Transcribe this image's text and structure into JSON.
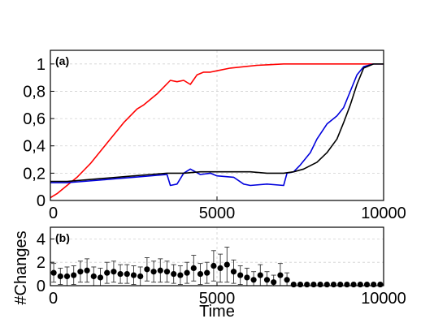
{
  "chart_data": [
    {
      "type": "line",
      "panel_label": "(a)",
      "xlim": [
        0,
        10000
      ],
      "ylim": [
        0,
        1.1
      ],
      "x_ticks": [
        0,
        5000,
        10000
      ],
      "x_tick_labels": [
        "0",
        "5000",
        "10000"
      ],
      "y_ticks": [
        0,
        0.2,
        0.4,
        0.6,
        0.8,
        1
      ],
      "y_tick_labels": [
        "0",
        "0,2",
        "0,4",
        "0,6",
        "0,8",
        "1"
      ],
      "grid": true,
      "series": [
        {
          "color": "#ff0000",
          "x": [
            0,
            200,
            400,
            600,
            800,
            1000,
            1200,
            1400,
            1600,
            1800,
            2000,
            2200,
            2400,
            2600,
            2800,
            3000,
            3200,
            3400,
            3600,
            3800,
            4000,
            4200,
            4400,
            4600,
            4800,
            5000,
            5400,
            5800,
            6200,
            6600,
            7000,
            7400,
            8000,
            9000,
            10000
          ],
          "y": [
            0.02,
            0.05,
            0.09,
            0.13,
            0.17,
            0.22,
            0.27,
            0.33,
            0.39,
            0.45,
            0.51,
            0.57,
            0.62,
            0.67,
            0.7,
            0.74,
            0.78,
            0.83,
            0.88,
            0.87,
            0.88,
            0.85,
            0.92,
            0.94,
            0.94,
            0.95,
            0.97,
            0.98,
            0.99,
            0.995,
            1.0,
            1.0,
            1.0,
            1.0,
            1.0
          ]
        },
        {
          "color": "#0000dd",
          "x": [
            0,
            500,
            1000,
            1500,
            2000,
            2500,
            3000,
            3500,
            3600,
            3800,
            4000,
            4200,
            4500,
            4800,
            5000,
            5500,
            5800,
            6000,
            6500,
            7000,
            7100,
            7300,
            7500,
            7800,
            8000,
            8300,
            8600,
            8800,
            9000,
            9200,
            9400,
            9700,
            10000
          ],
          "y": [
            0.13,
            0.13,
            0.14,
            0.15,
            0.16,
            0.17,
            0.18,
            0.19,
            0.11,
            0.12,
            0.2,
            0.23,
            0.19,
            0.2,
            0.18,
            0.17,
            0.12,
            0.11,
            0.12,
            0.11,
            0.2,
            0.21,
            0.26,
            0.35,
            0.45,
            0.56,
            0.62,
            0.68,
            0.8,
            0.92,
            0.98,
            1.0,
            1.0
          ]
        },
        {
          "color": "#000000",
          "x": [
            0,
            500,
            1000,
            1500,
            2000,
            2500,
            3000,
            3500,
            4000,
            4500,
            5000,
            5500,
            6000,
            6500,
            7000,
            7300,
            7600,
            8000,
            8300,
            8600,
            8800,
            9000,
            9200,
            9400,
            9700,
            10000
          ],
          "y": [
            0.14,
            0.14,
            0.15,
            0.16,
            0.17,
            0.18,
            0.19,
            0.2,
            0.2,
            0.21,
            0.21,
            0.21,
            0.21,
            0.2,
            0.2,
            0.21,
            0.23,
            0.28,
            0.35,
            0.45,
            0.57,
            0.7,
            0.85,
            0.97,
            1.0,
            1.0
          ]
        }
      ]
    },
    {
      "type": "scatter",
      "panel_label": "(b)",
      "ylabel": "#Changes",
      "xlabel": "Time",
      "xlim": [
        0,
        10000
      ],
      "ylim": [
        0,
        5
      ],
      "x_ticks": [
        0,
        5000,
        10000
      ],
      "x_tick_labels": [
        "0",
        "5000",
        "10000"
      ],
      "y_ticks": [
        0,
        2,
        4
      ],
      "y_tick_labels": [
        "0",
        "2",
        "4"
      ],
      "grid": true,
      "series": [
        {
          "color": "#000000",
          "x": [
            100,
            300,
            500,
            700,
            900,
            1100,
            1300,
            1500,
            1700,
            1900,
            2100,
            2300,
            2500,
            2700,
            2900,
            3100,
            3300,
            3500,
            3700,
            3900,
            4100,
            4300,
            4500,
            4700,
            4900,
            5100,
            5300,
            5500,
            5700,
            5900,
            6100,
            6300,
            6500,
            6700,
            6900,
            7100,
            7300,
            7500,
            7700,
            7900,
            8100,
            8300,
            8500,
            8700,
            8900,
            9100,
            9300,
            9500,
            9700,
            9900
          ],
          "y": [
            1.1,
            0.8,
            0.8,
            0.9,
            1.2,
            1.3,
            0.8,
            0.7,
            1.1,
            1.2,
            1.0,
            1.0,
            0.9,
            0.8,
            1.4,
            1.2,
            1.3,
            1.2,
            1.0,
            0.9,
            1.1,
            1.5,
            1.0,
            1.1,
            1.7,
            1.5,
            1.8,
            1.2,
            0.9,
            0.7,
            0.5,
            0.9,
            0.5,
            0.3,
            0.9,
            0.5,
            0.1,
            0.1,
            0.1,
            0.1,
            0.1,
            0.1,
            0.1,
            0.1,
            0.1,
            0.1,
            0.1,
            0.1,
            0.1,
            0.1
          ],
          "error": [
            0.8,
            0.7,
            0.8,
            0.8,
            0.9,
            1.0,
            0.8,
            0.8,
            0.9,
            0.9,
            0.8,
            0.8,
            0.8,
            0.8,
            1.0,
            0.9,
            1.0,
            0.9,
            0.8,
            0.8,
            0.9,
            1.1,
            0.9,
            0.9,
            1.3,
            1.2,
            1.5,
            1.0,
            0.8,
            0.8,
            0.7,
            0.9,
            0.7,
            0.6,
            1.0,
            0.6,
            0,
            0,
            0,
            0,
            0,
            0,
            0,
            0,
            0,
            0,
            0,
            0,
            0,
            0
          ]
        }
      ]
    }
  ]
}
